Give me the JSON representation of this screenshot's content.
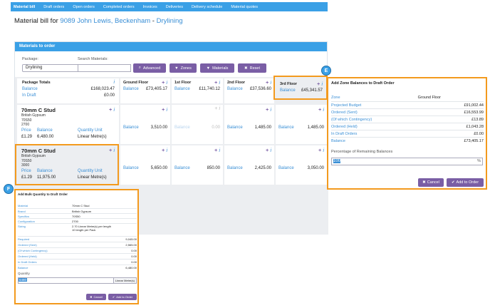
{
  "nav": [
    "Material bill",
    "Draft orders",
    "Open orders",
    "Completed orders",
    "Invoices",
    "Deliveries",
    "Delivery schedule",
    "Material quotes"
  ],
  "title": {
    "prefix": "Material bill for ",
    "project": "9089 John Lewis, Beckenham",
    "sep": " - ",
    "trade": "Drylining"
  },
  "panel": {
    "heading": "Materials to order",
    "package_label": "Package:",
    "package_value": "Drylining",
    "search_label": "Search Materials:",
    "buttons": {
      "advanced": "Advanced",
      "zones": "Zones",
      "materials": "Materials",
      "reset": "Reset"
    }
  },
  "totals": {
    "label": "Package Totals",
    "balance_label": "Balance",
    "balance": "£168,023.47",
    "draft_label": "In Draft",
    "draft": "£0.00",
    "info": "i"
  },
  "zones": [
    {
      "name": "Ground Floor",
      "balance": "£73,405.17"
    },
    {
      "name": "1st Floor",
      "balance": "£11,740.12"
    },
    {
      "name": "2nd Floor",
      "balance": "£37,536.60"
    },
    {
      "name": "3rd Floor",
      "balance": "£45,341.57"
    }
  ],
  "zone_balance_label": "Balance",
  "materials": [
    {
      "name": "70mm C Stud",
      "brand": "British Gypsum",
      "spec": "70S50",
      "config": "2700",
      "price_label": "Price",
      "balance_label": "Balance",
      "qty_label": "Quantity Unit",
      "price": "£1.29",
      "balance": "6,480.00",
      "unit": "Linear Metre(s)",
      "cells": [
        "3,510.00",
        "0.00",
        "1,485.00",
        "1,485.00"
      ]
    },
    {
      "name": "70mm C Stud",
      "brand": "British Gypsum",
      "spec": "70S50",
      "config": "3000",
      "price_label": "Price",
      "balance_label": "Balance",
      "qty_label": "Quantity Unit",
      "price": "£1.29",
      "balance": "11,975.00",
      "unit": "Linear Metre(s)",
      "cells": [
        "5,650.00",
        "850.00",
        "2,425.00",
        "3,050.00"
      ]
    }
  ],
  "plus": "+",
  "info": "i",
  "badge_e": "E",
  "badge_f": "F",
  "dlgE": {
    "title": "Add Zone Balances to Draft Order",
    "rows": [
      {
        "k": "Zone",
        "v": "Ground Floor"
      },
      {
        "k": "Projected Budget",
        "v": "£91,002.44"
      },
      {
        "k": "Ordered (Sent)",
        "v": "£16,553.99"
      },
      {
        "k": "(Of which Contingency)",
        "v": "£13.89"
      },
      {
        "k": "Ordered (Held)",
        "v": "£1,043.28"
      },
      {
        "k": "In Draft Orders",
        "v": "£0.00"
      },
      {
        "k": "Balance",
        "v": "£73,405.17"
      }
    ],
    "pct_label": "Percentage of Remaining Balances",
    "pct_value": "100",
    "pct_unit": "%",
    "cancel": "Cancel",
    "add": "Add to Order"
  },
  "dlgF": {
    "title": "Add Bulk Quantity to Draft Order",
    "rows": [
      {
        "k": "Material",
        "v": "70mm C Stud"
      },
      {
        "k": "Brand",
        "v": "British Gypsum"
      },
      {
        "k": "Specifics",
        "v": "70S50"
      },
      {
        "k": "Configuration",
        "v": "2700"
      },
      {
        "k": "Sizing",
        "v": "2.70 Linear Metre(s) per length"
      },
      {
        "k": "",
        "v": "10 length per Pack"
      }
    ],
    "nums": [
      {
        "k": "Required",
        "v": "9,045.00"
      },
      {
        "k": "Ordered (Sent)",
        "v": "2,565.00"
      },
      {
        "k": "(Of which Contingency)",
        "v": "0.00"
      },
      {
        "k": "Ordered (Held)",
        "v": "0.00"
      },
      {
        "k": "In Draft Orders",
        "v": "0.00"
      },
      {
        "k": "Balance",
        "v": "6,480.00"
      }
    ],
    "qty_label": "Quantity",
    "qty_value": "6480",
    "unit": "Linear Metre(s)",
    "cancel": "Cancel",
    "add": "Add to Order"
  }
}
